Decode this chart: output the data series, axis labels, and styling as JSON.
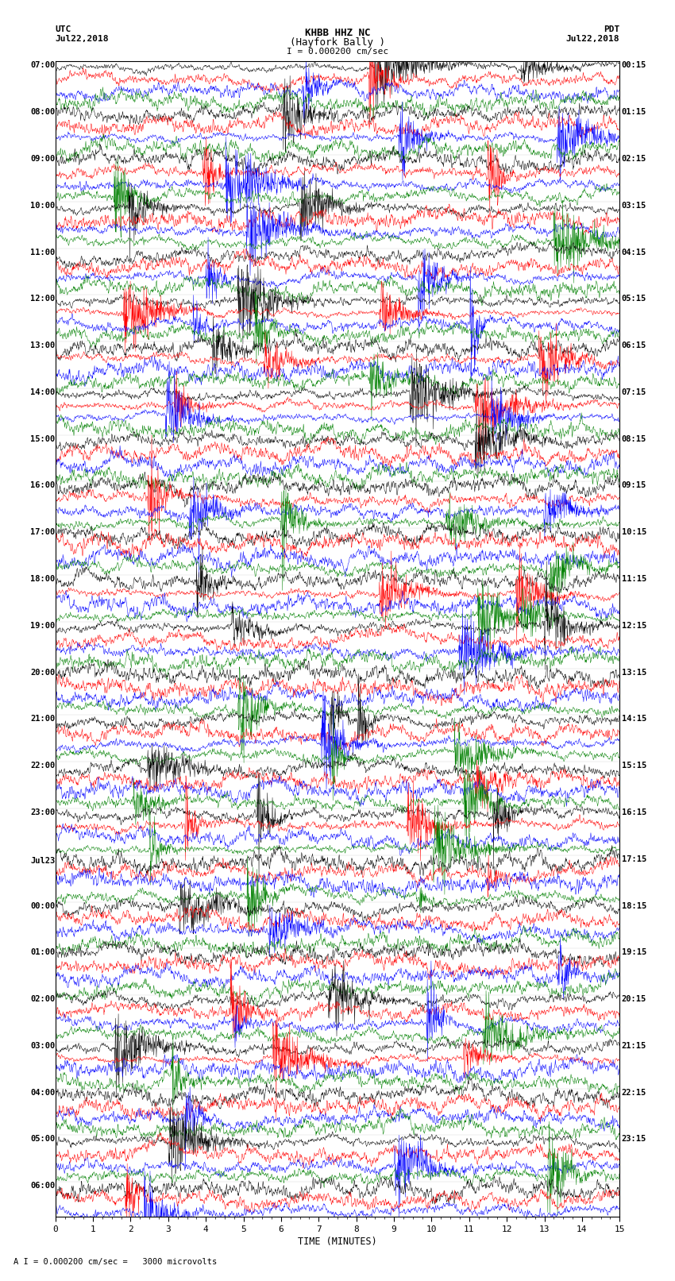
{
  "title_line1": "KHBB HHZ NC",
  "title_line2": "(Hayfork Bally )",
  "scale_label": "I = 0.000200 cm/sec",
  "bottom_label": "A I = 0.000200 cm/sec =   3000 microvolts",
  "xlabel": "TIME (MINUTES)",
  "left_header": "UTC",
  "left_date": "Jul22,2018",
  "right_header": "PDT",
  "right_date": "Jul22,2018",
  "bg_color": "#ffffff",
  "trace_colors": [
    "black",
    "red",
    "blue",
    "green"
  ],
  "left_times": [
    "07:00",
    "08:00",
    "09:00",
    "10:00",
    "11:00",
    "12:00",
    "13:00",
    "14:00",
    "15:00",
    "16:00",
    "17:00",
    "18:00",
    "19:00",
    "20:00",
    "21:00",
    "22:00",
    "23:00",
    "Jul23",
    "00:00",
    "01:00",
    "02:00",
    "03:00",
    "04:00",
    "05:00",
    "06:00"
  ],
  "right_times": [
    "00:15",
    "01:15",
    "02:15",
    "03:15",
    "04:15",
    "05:15",
    "06:15",
    "07:15",
    "08:15",
    "09:15",
    "10:15",
    "11:15",
    "12:15",
    "13:15",
    "14:15",
    "15:15",
    "16:15",
    "17:15",
    "18:15",
    "19:15",
    "20:15",
    "21:15",
    "22:15",
    "23:15"
  ],
  "n_hours": 24,
  "traces_per_hour": 4,
  "xmin": 0,
  "xmax": 15,
  "noise_seed": 42
}
